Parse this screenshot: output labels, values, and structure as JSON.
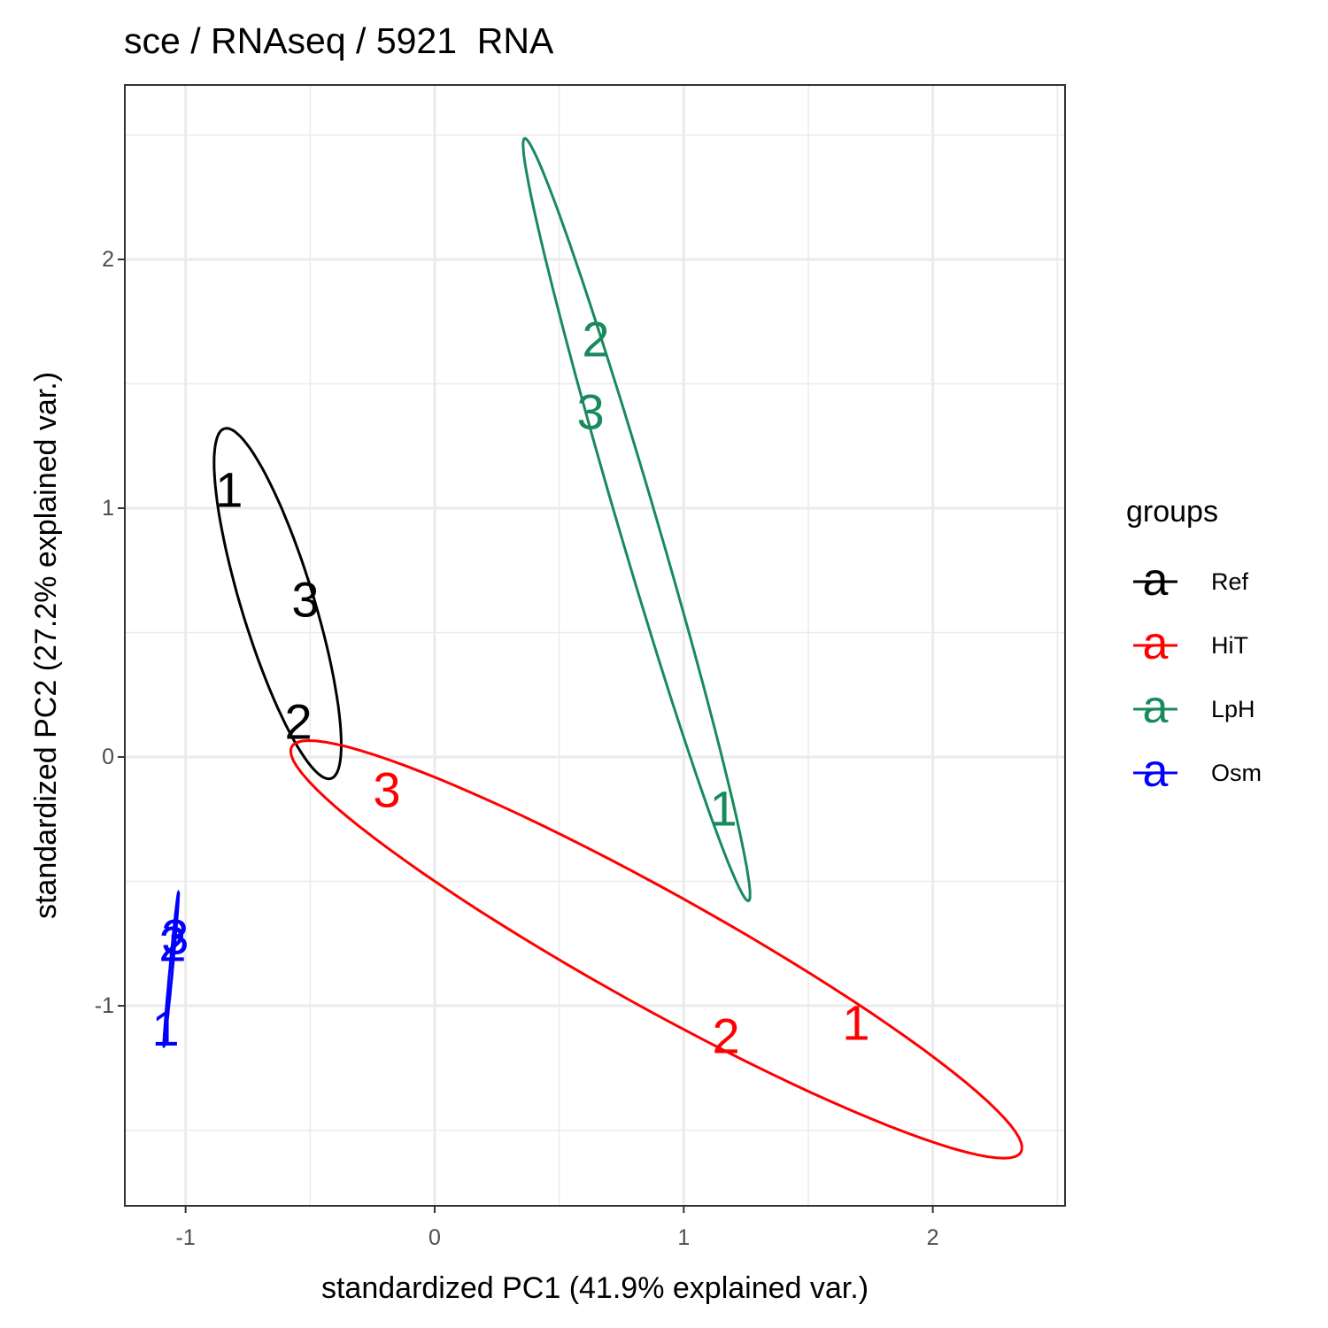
{
  "chart_data": {
    "type": "scatter",
    "title": "sce / RNAseq / 5921  RNA",
    "x_label": "standardized PC1 (41.9% explained var.)",
    "y_label": "standardized PC2 (27.2% explained var.)",
    "legend_title": "groups",
    "legend_symbol": "a",
    "legend_position": "right",
    "grid": true,
    "ellipse": true,
    "xlim": [
      -1.244,
      2.531
    ],
    "ylim": [
      -1.804,
      2.701
    ],
    "xticks": [
      -1,
      0,
      1,
      2
    ],
    "yticks": [
      -1,
      0,
      1,
      2
    ],
    "series": [
      {
        "name": "Ref",
        "color": "#000000",
        "labels": [
          "1",
          "3",
          "2"
        ],
        "x": [
          -0.825,
          -0.519,
          -0.547
        ],
        "values": [
          1.075,
          0.633,
          0.142
        ]
      },
      {
        "name": "HiT",
        "color": "#ff0000",
        "labels": [
          "3",
          "2",
          "1"
        ],
        "x": [
          -0.192,
          1.17,
          1.692
        ],
        "values": [
          -0.132,
          -1.12,
          -1.068
        ]
      },
      {
        "name": "LpH",
        "color": "#178a5e",
        "labels": [
          "2",
          "3",
          "1"
        ],
        "x": [
          0.647,
          0.626,
          1.159
        ],
        "values": [
          1.68,
          1.388,
          -0.206
        ]
      },
      {
        "name": "Osm",
        "color": "#0000ff",
        "labels": [
          "3",
          "2",
          "1"
        ],
        "x": [
          -1.042,
          -1.052,
          -1.08
        ],
        "values": [
          -0.722,
          -0.75,
          -1.09
        ]
      }
    ]
  }
}
